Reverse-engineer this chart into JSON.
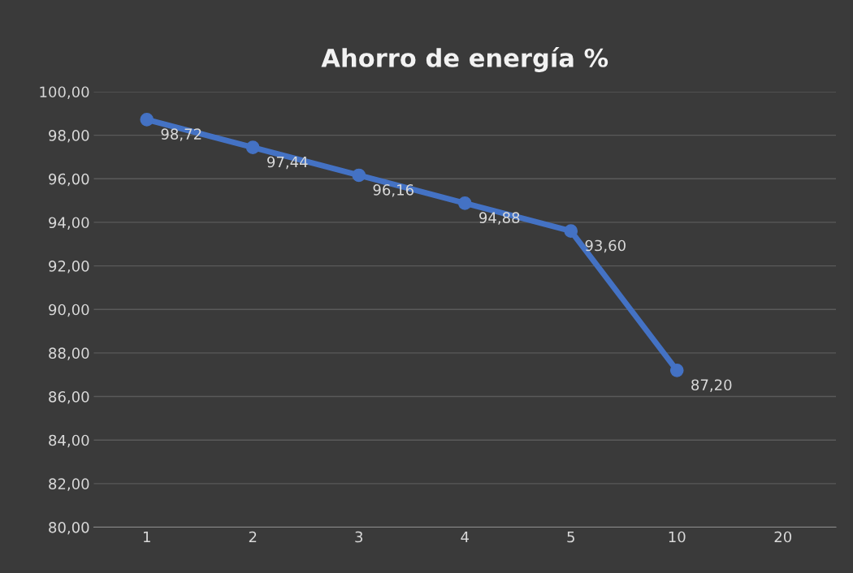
{
  "chart_data": {
    "type": "line",
    "title": "Ahorro de energía %",
    "categories": [
      "1",
      "2",
      "3",
      "4",
      "5",
      "10",
      "20"
    ],
    "series": [
      {
        "color": "#4472c4",
        "values": [
          98.72,
          97.44,
          96.16,
          94.88,
          93.6,
          87.2,
          null
        ],
        "value_labels": [
          "98,72",
          "97,44",
          "96,16",
          "94,88",
          "93,60",
          "87,20",
          null
        ]
      }
    ],
    "ylim": [
      80,
      100
    ],
    "yticks": [
      {
        "value": 80,
        "label": "80,00"
      },
      {
        "value": 82,
        "label": "82,00"
      },
      {
        "value": 84,
        "label": "84,00"
      },
      {
        "value": 86,
        "label": "86,00"
      },
      {
        "value": 88,
        "label": "88,00"
      },
      {
        "value": 90,
        "label": "90,00"
      },
      {
        "value": 92,
        "label": "92,00"
      },
      {
        "value": 94,
        "label": "94,00"
      },
      {
        "value": 96,
        "label": "96,00"
      },
      {
        "value": 98,
        "label": "98,00"
      },
      {
        "value": 100,
        "label": "100,00"
      }
    ],
    "grid": "y",
    "marker": "circle",
    "line_style": "solid",
    "legend": false
  }
}
